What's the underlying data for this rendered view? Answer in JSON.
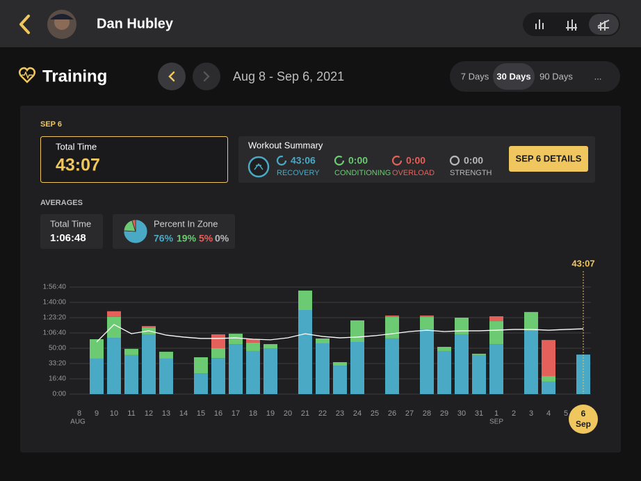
{
  "header": {
    "name": "Dan Hubley"
  },
  "toolbar": {
    "title": "Training",
    "date_range": "Aug 8 - Sep 6, 2021",
    "ranges": [
      "7 Days",
      "30 Days",
      "90 Days",
      "..."
    ],
    "selected_range": 1
  },
  "selected": {
    "date": "SEP 6",
    "total_time_label": "Total Time",
    "total_time": "43:07"
  },
  "summary": {
    "title": "Workout Summary",
    "button": "SEP 6 DETAILS",
    "items": [
      {
        "value": "43:06",
        "label": "RECOVERY",
        "color": "#4aa9c4"
      },
      {
        "value": "0:00",
        "label": "CONDITIONING",
        "color": "#6ccb72"
      },
      {
        "value": "0:00",
        "label": "OVERLOAD",
        "color": "#e4605a"
      },
      {
        "value": "0:00",
        "label": "STRENGTH",
        "color": "#b8b8b8"
      }
    ]
  },
  "averages": {
    "title": "AVERAGES",
    "total_time_label": "Total Time",
    "total_time": "1:06:48",
    "zone_title": "Percent In Zone"
  },
  "chart_data": [
    {
      "type": "pie",
      "values": [
        76,
        19,
        5,
        0
      ],
      "value_labels": [
        "76%",
        "19%",
        "5%",
        "0%"
      ],
      "colors": [
        "#4aa9c4",
        "#6ccb72",
        "#e4605a",
        "#b8b8b8"
      ]
    },
    {
      "type": "bar",
      "stacked": true,
      "grid": true,
      "categories": [
        "8",
        "9",
        "10",
        "11",
        "12",
        "13",
        "14",
        "15",
        "16",
        "17",
        "18",
        "19",
        "20",
        "21",
        "22",
        "23",
        "24",
        "25",
        "26",
        "27",
        "28",
        "29",
        "30",
        "31",
        "1",
        "2",
        "3",
        "4",
        "5",
        "6"
      ],
      "sublabels": [
        "AUG",
        null,
        null,
        null,
        null,
        null,
        null,
        null,
        null,
        null,
        null,
        null,
        null,
        null,
        null,
        null,
        null,
        null,
        null,
        null,
        null,
        null,
        null,
        null,
        "SEP",
        null,
        null,
        null,
        null,
        "Sep"
      ],
      "selected_index": 29,
      "annotation": "43:07",
      "ylim": [
        0,
        7000
      ],
      "yticks": [
        {
          "value": 0,
          "label": "0:00"
        },
        {
          "value": 1000,
          "label": "16:40"
        },
        {
          "value": 2000,
          "label": "33:20"
        },
        {
          "value": 3000,
          "label": "50:00"
        },
        {
          "value": 4000,
          "label": "1:06:40"
        },
        {
          "value": 5000,
          "label": "1:23:20"
        },
        {
          "value": 6000,
          "label": "1:40:00"
        },
        {
          "value": 7000,
          "label": "1:56:40"
        }
      ],
      "series": [
        {
          "name": "RECOVERY",
          "color": "#4aa9c4",
          "values": [
            null,
            2320,
            3680,
            2550,
            3910,
            2320,
            null,
            1360,
            2360,
            3270,
            2820,
            3000,
            null,
            5500,
            3320,
            1860,
            3410,
            null,
            3640,
            null,
            4230,
            2820,
            3910,
            2550,
            3270,
            null,
            4140,
            820,
            null,
            2586
          ]
        },
        {
          "name": "CONDITIONING",
          "color": "#6ccb72",
          "values": [
            null,
            1270,
            1370,
            410,
            450,
            450,
            null,
            1050,
            640,
            680,
            550,
            270,
            null,
            1270,
            320,
            230,
            1410,
            null,
            1410,
            null,
            820,
            270,
            1090,
            90,
            1500,
            null,
            1230,
            360,
            null,
            null
          ]
        },
        {
          "name": "OVERLOAD",
          "color": "#e4605a",
          "values": [
            null,
            null,
            370,
            null,
            90,
            null,
            null,
            null,
            910,
            null,
            230,
            null,
            null,
            null,
            null,
            null,
            null,
            null,
            90,
            null,
            90,
            null,
            null,
            null,
            320,
            null,
            null,
            2360,
            null,
            null
          ]
        },
        {
          "type": "line",
          "color": "#ffffff",
          "values": [
            null,
            3410,
            4550,
            3950,
            4140,
            3860,
            3730,
            3640,
            3640,
            3680,
            3590,
            3550,
            3680,
            3950,
            3770,
            3680,
            3730,
            3820,
            3950,
            4090,
            4180,
            4090,
            4140,
            4140,
            4180,
            4230,
            4230,
            4180,
            4230,
            4270
          ]
        }
      ]
    }
  ]
}
